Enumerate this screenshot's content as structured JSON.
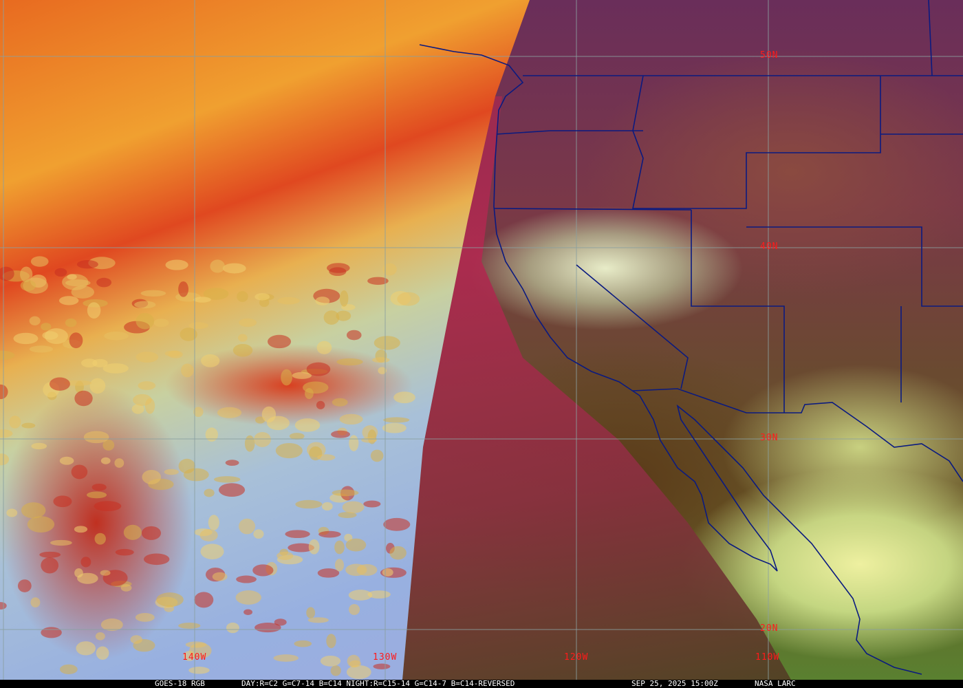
{
  "map": {
    "latitude_labels": [
      "50N",
      "40N",
      "30N",
      "20N"
    ],
    "longitude_labels": [
      "140W",
      "130W",
      "120W",
      "110W"
    ],
    "grid_color": "#8aa0a0",
    "label_color": "#ff1a1a",
    "boundary_color": "#0a1a80"
  },
  "caption": {
    "product": "GOES-18 RGB",
    "recipe": "DAY:R=C2 G=C7-14 B=C14 NIGHT:R=C15-14 G=C14-7 B=C14-REVERSED",
    "timestamp": "SEP 25, 2025 15:00Z",
    "source": "NASA LARC"
  }
}
